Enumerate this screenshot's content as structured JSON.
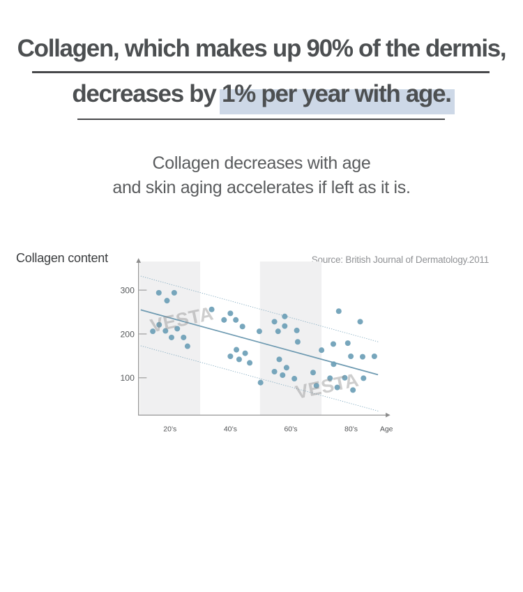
{
  "header": {
    "title_line1": "Collagen, which makes up 90% of the dermis,",
    "title_line2_prefix": "decreases by ",
    "title_line2_highlight": "1% per year with age.",
    "highlight_color": "#cdd8e7",
    "subtitle_line1": "Collagen decreases with age",
    "subtitle_line2": "and skin aging accelerates if left as it is."
  },
  "chart": {
    "y_axis_title": "Collagen content",
    "source": "Source: British Journal of Dermatology.2011",
    "age_axis_label": "Age",
    "watermark_text": "VESTA"
  },
  "chart_data": {
    "type": "scatter",
    "title": "Collagen content vs age",
    "xlabel": "Age",
    "ylabel": "Collagen content",
    "x_tick_labels": [
      "20’s",
      "40’s",
      "60’s",
      "80’s"
    ],
    "x_tick_ages": [
      25,
      45,
      65,
      85
    ],
    "y_ticks": [
      300,
      200,
      100
    ],
    "xlim_age": [
      15,
      97
    ],
    "ylim_value": [
      10,
      365
    ],
    "grid": false,
    "legend": "none",
    "shaded_age_bands": [
      [
        15,
        35
      ],
      [
        54.8,
        75.2
      ]
    ],
    "points": [
      [
        21.3,
        294
      ],
      [
        26.4,
        294
      ],
      [
        24.0,
        276
      ],
      [
        19.3,
        206
      ],
      [
        21.4,
        221
      ],
      [
        23.5,
        207
      ],
      [
        25.5,
        192
      ],
      [
        27.4,
        212
      ],
      [
        29.5,
        192
      ],
      [
        30.8,
        172
      ],
      [
        38.8,
        256
      ],
      [
        42.9,
        232
      ],
      [
        45.0,
        247
      ],
      [
        46.8,
        232
      ],
      [
        49.0,
        217
      ],
      [
        45.0,
        149
      ],
      [
        47.0,
        164
      ],
      [
        49.9,
        156
      ],
      [
        47.9,
        142
      ],
      [
        51.4,
        134
      ],
      [
        54.6,
        206
      ],
      [
        55.0,
        89
      ],
      [
        60.8,
        206
      ],
      [
        63.0,
        240
      ],
      [
        59.6,
        228
      ],
      [
        63.0,
        218
      ],
      [
        67.0,
        208
      ],
      [
        67.3,
        182
      ],
      [
        61.2,
        142
      ],
      [
        59.6,
        114
      ],
      [
        62.3,
        106
      ],
      [
        63.6,
        123
      ],
      [
        66.2,
        98
      ],
      [
        72.4,
        112
      ],
      [
        73.5,
        82
      ],
      [
        75.2,
        163
      ],
      [
        79.1,
        177
      ],
      [
        79.2,
        131
      ],
      [
        78.0,
        99
      ],
      [
        80.4,
        78
      ],
      [
        80.9,
        252
      ],
      [
        83.9,
        179
      ],
      [
        82.9,
        100
      ],
      [
        84.9,
        149
      ],
      [
        85.6,
        72
      ],
      [
        88.0,
        228
      ],
      [
        88.8,
        148
      ],
      [
        89.1,
        99
      ],
      [
        92.7,
        149
      ]
    ],
    "trend_line": {
      "age1": 15.3,
      "value1": 255,
      "age2": 93.9,
      "value2": 107
    },
    "confidence_upper_line": {
      "age1": 15.3,
      "value1": 332,
      "age2": 94.0,
      "value2": 182
    },
    "confidence_lower_line": {
      "age1": 15.3,
      "value1": 173,
      "age2": 94.0,
      "value2": 24
    },
    "colors": {
      "point": "#6d9fb7",
      "trend": "#6e9ab1",
      "dotted": "#7fa9bf",
      "band": "#f0f0f1",
      "axis": "#8c8c8c",
      "tick": "#9b9b9b"
    }
  }
}
